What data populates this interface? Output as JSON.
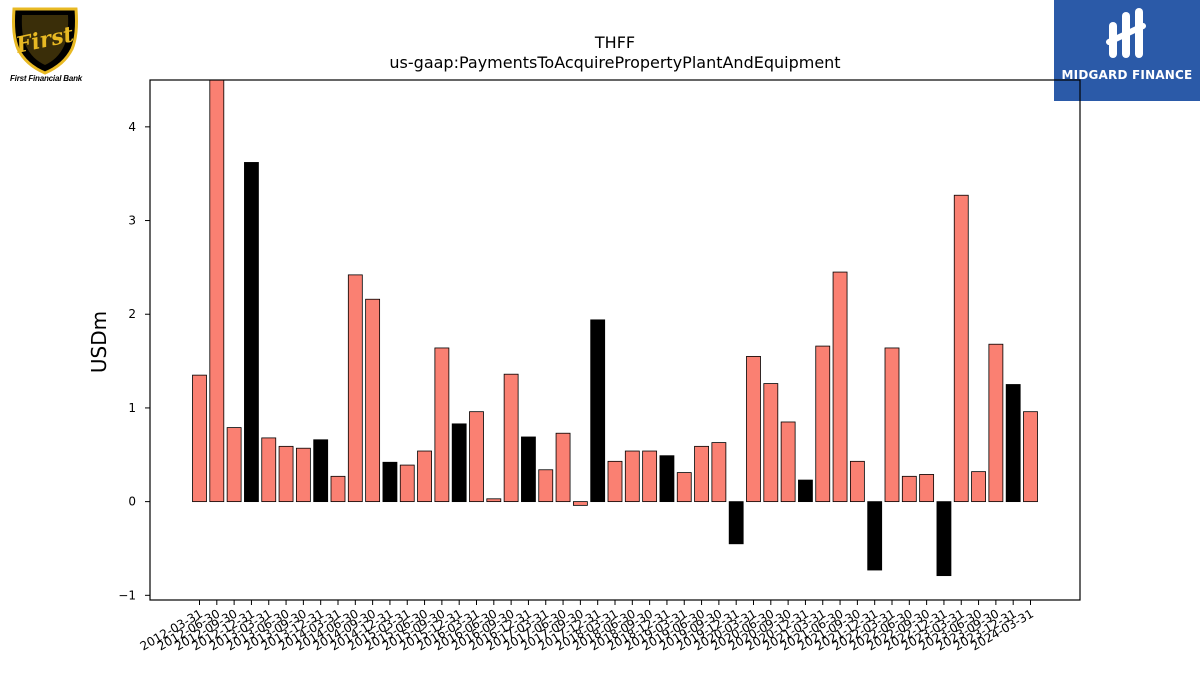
{
  "brand_left": {
    "caption": "First Financial Bank",
    "logo_text": "First"
  },
  "brand_right": {
    "caption": "MIDGARD FINANCE"
  },
  "colors": {
    "positive": "#fa8072",
    "negative": "#000000",
    "edge": "#000000"
  },
  "chart_data": {
    "type": "bar",
    "title": "THFF",
    "subtitle": "us-gaap:PaymentsToAcquirePropertyPlantAndEquipment",
    "ylabel": "USDm",
    "xlabel": "",
    "ylim": [
      -1.05,
      4.5
    ],
    "yticks": [
      -1,
      0,
      1,
      2,
      3,
      4
    ],
    "grid": false,
    "legend": "none",
    "categories": [
      "2012-03-31",
      "2012-06-30",
      "2012-09-30",
      "2012-12-31",
      "2013-03-31",
      "2013-06-30",
      "2013-09-30",
      "2013-12-31",
      "2014-03-31",
      "2014-06-30",
      "2014-09-30",
      "2014-12-31",
      "2015-03-31",
      "2015-06-30",
      "2015-09-30",
      "2015-12-31",
      "2016-03-31",
      "2016-06-30",
      "2016-09-30",
      "2016-12-31",
      "2017-03-31",
      "2017-06-30",
      "2017-09-30",
      "2017-12-31",
      "2018-03-31",
      "2018-06-30",
      "2018-09-30",
      "2018-12-31",
      "2019-03-31",
      "2019-06-30",
      "2019-09-30",
      "2019-12-31",
      "2020-03-31",
      "2020-06-30",
      "2020-09-30",
      "2020-12-31",
      "2021-03-31",
      "2021-06-30",
      "2021-09-30",
      "2021-12-31",
      "2022-03-31",
      "2022-06-30",
      "2022-09-30",
      "2022-12-31",
      "2023-03-31",
      "2023-06-30",
      "2023-09-30",
      "2023-12-31",
      "2024-03-31"
    ],
    "values": [
      1.35,
      4.5,
      0.79,
      3.62,
      0.68,
      0.59,
      0.57,
      0.66,
      0.27,
      2.42,
      2.16,
      0.42,
      0.39,
      0.54,
      1.64,
      0.83,
      0.96,
      0.03,
      1.36,
      0.69,
      0.34,
      0.73,
      -0.04,
      1.94,
      0.43,
      0.54,
      0.54,
      0.49,
      0.31,
      0.59,
      0.63,
      -0.45,
      1.55,
      1.26,
      0.85,
      0.23,
      1.66,
      2.45,
      0.43,
      -0.73,
      1.64,
      0.27,
      0.29,
      -0.79,
      3.27,
      0.32,
      1.68,
      1.25,
      0.96
    ],
    "highlighted": [
      false,
      false,
      false,
      true,
      false,
      false,
      false,
      true,
      false,
      false,
      false,
      true,
      false,
      false,
      false,
      true,
      false,
      false,
      false,
      true,
      false,
      false,
      false,
      true,
      false,
      false,
      false,
      true,
      false,
      false,
      false,
      true,
      false,
      false,
      false,
      true,
      false,
      false,
      false,
      true,
      false,
      false,
      false,
      true,
      false,
      false,
      false,
      true,
      false
    ]
  }
}
